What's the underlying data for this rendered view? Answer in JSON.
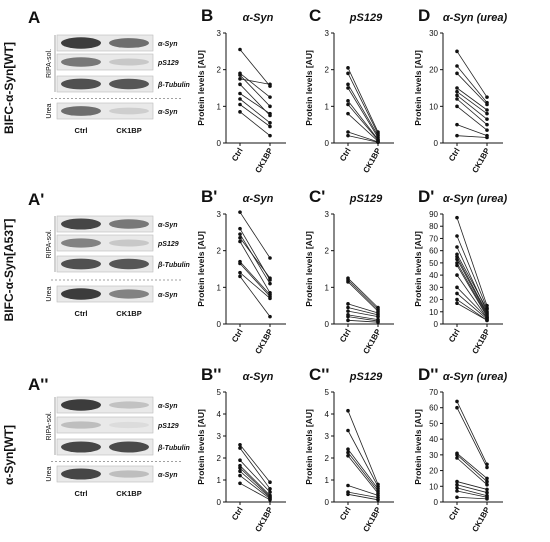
{
  "rows": [
    {
      "row_label": "BIFC-α-Syn[WT]",
      "blot": {
        "panel_letter": "A",
        "bands": [
          "α-Syn",
          "pS129",
          "β-Tubulin",
          "α-Syn"
        ],
        "fraction_labels": [
          "RIPA-sol.",
          "Urea"
        ],
        "lanes": [
          "Ctrl",
          "CK1BP"
        ],
        "band_intensity": [
          [
            0.85,
            0.6
          ],
          [
            0.55,
            0.15
          ],
          [
            0.75,
            0.72
          ],
          [
            0.6,
            0.12
          ]
        ]
      }
    },
    {
      "row_label": "BIFC-α-Syn[A53T]",
      "blot": {
        "panel_letter": "A'",
        "bands": [
          "α-Syn",
          "pS129",
          "β-Tubulin",
          "α-Syn"
        ],
        "fraction_labels": [
          "RIPA-sol.",
          "Urea"
        ],
        "lanes": [
          "Ctrl",
          "CK1BP"
        ],
        "band_intensity": [
          [
            0.8,
            0.55
          ],
          [
            0.5,
            0.15
          ],
          [
            0.75,
            0.72
          ],
          [
            0.85,
            0.5
          ]
        ]
      }
    },
    {
      "row_label": "α-Syn[WT]",
      "blot": {
        "panel_letter": "A''",
        "bands": [
          "α-Syn",
          "pS129",
          "β-Tubulin",
          "α-Syn"
        ],
        "fraction_labels": [
          "RIPA-sol.",
          "Urea"
        ],
        "lanes": [
          "Ctrl",
          "CK1BP"
        ],
        "band_intensity": [
          [
            0.85,
            0.18
          ],
          [
            0.2,
            0.05
          ],
          [
            0.8,
            0.78
          ],
          [
            0.8,
            0.2
          ]
        ]
      }
    }
  ],
  "chart_data": [
    {
      "panel_letter": "B",
      "type": "line",
      "title": "α-Syn",
      "ylabel": "Protein levels [AU]",
      "categories": [
        "Ctrl",
        "CK1BP"
      ],
      "ylim": [
        0,
        3
      ],
      "yticks": [
        0,
        1,
        2,
        3
      ],
      "series": [
        {
          "values": [
            2.55,
            1.55
          ]
        },
        {
          "values": [
            1.9,
            1.25
          ]
        },
        {
          "values": [
            1.85,
            1.0
          ]
        },
        {
          "values": [
            1.75,
            1.6
          ]
        },
        {
          "values": [
            1.6,
            0.75
          ]
        },
        {
          "values": [
            1.35,
            0.8
          ]
        },
        {
          "values": [
            1.2,
            0.55
          ]
        },
        {
          "values": [
            1.05,
            0.45
          ]
        },
        {
          "values": [
            0.85,
            0.2
          ]
        }
      ]
    },
    {
      "panel_letter": "C",
      "type": "line",
      "title": "pS129",
      "ylabel": "Protein levels [AU]",
      "categories": [
        "Ctrl",
        "CK1BP"
      ],
      "ylim": [
        0,
        3
      ],
      "yticks": [
        0,
        1,
        2,
        3
      ],
      "series": [
        {
          "values": [
            2.05,
            0.3
          ]
        },
        {
          "values": [
            1.9,
            0.25
          ]
        },
        {
          "values": [
            1.6,
            0.2
          ]
        },
        {
          "values": [
            1.5,
            0.15
          ]
        },
        {
          "values": [
            1.15,
            0.1
          ]
        },
        {
          "values": [
            1.05,
            0.08
          ]
        },
        {
          "values": [
            0.8,
            0.05
          ]
        },
        {
          "values": [
            0.3,
            0.03
          ]
        },
        {
          "values": [
            0.2,
            0.02
          ]
        }
      ]
    },
    {
      "panel_letter": "D",
      "type": "line",
      "title": "α-Syn (urea)",
      "ylabel": "Protein levels [AU]",
      "categories": [
        "Ctrl",
        "CK1BP"
      ],
      "ylim": [
        0,
        30
      ],
      "yticks": [
        0,
        10,
        20,
        30
      ],
      "series": [
        {
          "values": [
            25,
            12.5
          ]
        },
        {
          "values": [
            21,
            11
          ]
        },
        {
          "values": [
            19,
            10.5
          ]
        },
        {
          "values": [
            15,
            9
          ]
        },
        {
          "values": [
            14,
            8
          ]
        },
        {
          "values": [
            13,
            6.5
          ]
        },
        {
          "values": [
            12,
            5
          ]
        },
        {
          "values": [
            10,
            3.5
          ]
        },
        {
          "values": [
            5,
            2
          ]
        },
        {
          "values": [
            2,
            1.5
          ]
        }
      ]
    },
    {
      "panel_letter": "B'",
      "type": "line",
      "title": "α-Syn",
      "ylabel": "Protein levels [AU]",
      "categories": [
        "Ctrl",
        "CK1BP"
      ],
      "ylim": [
        0,
        3
      ],
      "yticks": [
        0,
        1,
        2,
        3
      ],
      "series": [
        {
          "values": [
            3.05,
            1.8
          ]
        },
        {
          "values": [
            2.6,
            1.2
          ]
        },
        {
          "values": [
            2.45,
            1.1
          ]
        },
        {
          "values": [
            2.35,
            1.25
          ]
        },
        {
          "values": [
            2.25,
            0.85
          ]
        },
        {
          "values": [
            1.7,
            0.8
          ]
        },
        {
          "values": [
            1.65,
            0.75
          ]
        },
        {
          "values": [
            1.4,
            0.7
          ]
        },
        {
          "values": [
            1.3,
            0.2
          ]
        }
      ]
    },
    {
      "panel_letter": "C'",
      "type": "line",
      "title": "pS129",
      "ylabel": "Protein levels [AU]",
      "categories": [
        "Ctrl",
        "CK1BP"
      ],
      "ylim": [
        0,
        3
      ],
      "yticks": [
        0,
        1,
        2,
        3
      ],
      "series": [
        {
          "values": [
            1.25,
            0.45
          ]
        },
        {
          "values": [
            1.2,
            0.4
          ]
        },
        {
          "values": [
            1.15,
            0.35
          ]
        },
        {
          "values": [
            0.55,
            0.3
          ]
        },
        {
          "values": [
            0.45,
            0.25
          ]
        },
        {
          "values": [
            0.35,
            0.2
          ]
        },
        {
          "values": [
            0.25,
            0.12
          ]
        },
        {
          "values": [
            0.2,
            0.08
          ]
        },
        {
          "values": [
            0.1,
            0.05
          ]
        }
      ]
    },
    {
      "panel_letter": "D'",
      "type": "line",
      "title": "α-Syn (urea)",
      "ylabel": "Protein levels [AU]",
      "categories": [
        "Ctrl",
        "CK1BP"
      ],
      "ylim": [
        0,
        90
      ],
      "yticks": [
        0,
        10,
        20,
        30,
        40,
        50,
        60,
        70,
        80,
        90
      ],
      "series": [
        {
          "values": [
            87,
            15
          ]
        },
        {
          "values": [
            72,
            13
          ]
        },
        {
          "values": [
            63,
            10
          ]
        },
        {
          "values": [
            57,
            12
          ]
        },
        {
          "values": [
            55,
            9
          ]
        },
        {
          "values": [
            53,
            8
          ]
        },
        {
          "values": [
            50,
            7
          ]
        },
        {
          "values": [
            48,
            6
          ]
        },
        {
          "values": [
            40,
            5
          ]
        },
        {
          "values": [
            30,
            5
          ]
        },
        {
          "values": [
            25,
            4
          ]
        },
        {
          "values": [
            20,
            3
          ]
        },
        {
          "values": [
            17,
            3
          ]
        }
      ]
    },
    {
      "panel_letter": "B''",
      "type": "line",
      "title": "α-Syn",
      "ylabel": "Protein levels [AU]",
      "categories": [
        "Ctrl",
        "CK1BP"
      ],
      "ylim": [
        0,
        5
      ],
      "yticks": [
        0,
        1,
        2,
        3,
        4,
        5
      ],
      "series": [
        {
          "values": [
            2.6,
            0.9
          ]
        },
        {
          "values": [
            2.45,
            0.6
          ]
        },
        {
          "values": [
            1.9,
            0.45
          ]
        },
        {
          "values": [
            1.65,
            0.3
          ]
        },
        {
          "values": [
            1.55,
            0.25
          ]
        },
        {
          "values": [
            1.4,
            0.2
          ]
        },
        {
          "values": [
            1.2,
            0.15
          ]
        },
        {
          "values": [
            0.85,
            0.1
          ]
        }
      ]
    },
    {
      "panel_letter": "C''",
      "type": "line",
      "title": "pS129",
      "ylabel": "Protein levels [AU]",
      "categories": [
        "Ctrl",
        "CK1BP"
      ],
      "ylim": [
        0,
        5
      ],
      "yticks": [
        0,
        1,
        2,
        3,
        4,
        5
      ],
      "series": [
        {
          "values": [
            4.15,
            0.8
          ]
        },
        {
          "values": [
            3.25,
            0.7
          ]
        },
        {
          "values": [
            2.4,
            0.6
          ]
        },
        {
          "values": [
            2.25,
            0.5
          ]
        },
        {
          "values": [
            2.1,
            0.4
          ]
        },
        {
          "values": [
            0.75,
            0.3
          ]
        },
        {
          "values": [
            0.45,
            0.2
          ]
        },
        {
          "values": [
            0.35,
            0.1
          ]
        }
      ]
    },
    {
      "panel_letter": "D''",
      "type": "line",
      "title": "α-Syn (urea)",
      "ylabel": "Protein levels [AU]",
      "categories": [
        "Ctrl",
        "CK1BP"
      ],
      "ylim": [
        0,
        70
      ],
      "yticks": [
        0,
        10,
        20,
        30,
        40,
        50,
        60,
        70
      ],
      "series": [
        {
          "values": [
            64,
            24
          ]
        },
        {
          "values": [
            60,
            22
          ]
        },
        {
          "values": [
            31,
            15
          ]
        },
        {
          "values": [
            30,
            13
          ]
        },
        {
          "values": [
            28,
            11
          ]
        },
        {
          "values": [
            13,
            8
          ]
        },
        {
          "values": [
            11,
            6
          ]
        },
        {
          "values": [
            9,
            4
          ]
        },
        {
          "values": [
            7,
            3
          ]
        },
        {
          "values": [
            3,
            2
          ]
        }
      ]
    }
  ]
}
